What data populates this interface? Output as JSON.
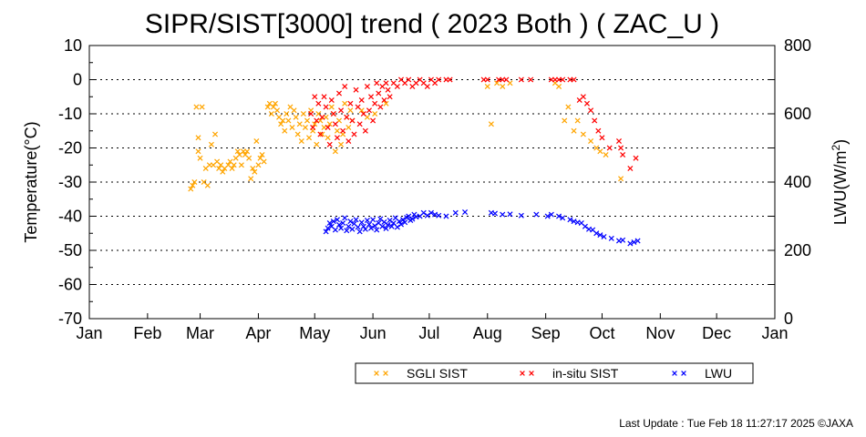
{
  "chart_data": {
    "type": "scatter",
    "title": "SIPR/SIST[3000] trend ( 2023 Both ) ( ZAC_U )",
    "ylabel": "Temperature(°C)",
    "y2label_main": "LWU(W/m",
    "y2label_sup": "2",
    "y2label_end": ")",
    "ylim": [
      -70,
      10
    ],
    "y2lim": [
      0,
      800
    ],
    "xlim": [
      0,
      365
    ],
    "y_ticks": [
      "10",
      "0",
      "-10",
      "-20",
      "-30",
      "-40",
      "-50",
      "-60",
      "-70"
    ],
    "y2_ticks": [
      "800",
      "600",
      "400",
      "200",
      "0"
    ],
    "month_labels": [
      "Jan",
      "Feb",
      "Mar",
      "Apr",
      "May",
      "Jun",
      "Jul",
      "Aug",
      "Sep",
      "Oct",
      "Nov",
      "Dec",
      "Jan"
    ],
    "grid": "horizontal dotted",
    "legend_position": "bottom-right",
    "series": [
      {
        "name": "SGLI SIST",
        "axis": "left",
        "color": "#ffa500",
        "points": [
          [
            54,
            -32
          ],
          [
            55,
            -31
          ],
          [
            56,
            -30
          ],
          [
            57,
            -8
          ],
          [
            58,
            -21
          ],
          [
            58,
            -17
          ],
          [
            59,
            -23
          ],
          [
            60,
            -8
          ],
          [
            61,
            -30
          ],
          [
            62,
            -26
          ],
          [
            63,
            -31
          ],
          [
            64,
            -25
          ],
          [
            65,
            -19
          ],
          [
            66,
            -25
          ],
          [
            67,
            -16
          ],
          [
            68,
            -24
          ],
          [
            69,
            -26
          ],
          [
            70,
            -25
          ],
          [
            71,
            -27
          ],
          [
            72,
            -26
          ],
          [
            74,
            -25
          ],
          [
            75,
            -24
          ],
          [
            76,
            -26
          ],
          [
            77,
            -25
          ],
          [
            78,
            -23
          ],
          [
            79,
            -21
          ],
          [
            80,
            -22
          ],
          [
            81,
            -25
          ],
          [
            82,
            -21
          ],
          [
            83,
            -22
          ],
          [
            84,
            -21
          ],
          [
            85,
            -23
          ],
          [
            86,
            -29
          ],
          [
            87,
            -26
          ],
          [
            88,
            -27
          ],
          [
            89,
            -18
          ],
          [
            90,
            -25
          ],
          [
            91,
            -23
          ],
          [
            92,
            -22
          ],
          [
            93,
            -24
          ],
          [
            95,
            -8
          ],
          [
            96,
            -7
          ],
          [
            97,
            -10
          ],
          [
            98,
            -8
          ],
          [
            99,
            -7
          ],
          [
            100,
            -9
          ],
          [
            101,
            -11
          ],
          [
            102,
            -13
          ],
          [
            103,
            -12
          ],
          [
            104,
            -15
          ],
          [
            105,
            -10
          ],
          [
            106,
            -12
          ],
          [
            107,
            -8
          ],
          [
            108,
            -14
          ],
          [
            109,
            -9
          ],
          [
            110,
            -11
          ],
          [
            111,
            -16
          ],
          [
            112,
            -13
          ],
          [
            113,
            -18
          ],
          [
            114,
            -10
          ],
          [
            115,
            -14
          ],
          [
            116,
            -12
          ],
          [
            117,
            -17
          ],
          [
            118,
            -9
          ],
          [
            119,
            -15
          ],
          [
            120,
            -13
          ],
          [
            121,
            -19
          ],
          [
            122,
            -10
          ],
          [
            123,
            -12
          ],
          [
            124,
            -16
          ],
          [
            125,
            -14
          ],
          [
            126,
            -11
          ],
          [
            127,
            -17
          ],
          [
            128,
            -13
          ],
          [
            129,
            -8
          ],
          [
            130,
            -10
          ],
          [
            131,
            -21
          ],
          [
            132,
            -15
          ],
          [
            133,
            -12
          ],
          [
            134,
            -19
          ],
          [
            135,
            -16
          ],
          [
            136,
            -7
          ],
          [
            137,
            -11
          ],
          [
            138,
            -14
          ],
          [
            139,
            -9
          ],
          [
            140,
            -12
          ],
          [
            145,
            -9
          ],
          [
            148,
            -11
          ],
          [
            152,
            -10
          ],
          [
            158,
            -7
          ],
          [
            212,
            -2
          ],
          [
            214,
            -13
          ],
          [
            217,
            -1
          ],
          [
            220,
            -2
          ],
          [
            224,
            -1
          ],
          [
            248,
            -1
          ],
          [
            250,
            -2
          ],
          [
            253,
            -12
          ],
          [
            255,
            -8
          ],
          [
            258,
            -15
          ],
          [
            260,
            -12
          ],
          [
            263,
            -16
          ],
          [
            267,
            -18
          ],
          [
            270,
            -20
          ],
          [
            272,
            -21
          ],
          [
            275,
            -22
          ],
          [
            283,
            -29
          ]
        ]
      },
      {
        "name": "in-situ SIST",
        "axis": "left",
        "color": "#ff0000",
        "points": [
          [
            118,
            -10
          ],
          [
            119,
            -14
          ],
          [
            120,
            -5
          ],
          [
            121,
            -12
          ],
          [
            122,
            -7
          ],
          [
            123,
            -16
          ],
          [
            124,
            -11
          ],
          [
            125,
            -5
          ],
          [
            126,
            -8
          ],
          [
            127,
            -14
          ],
          [
            128,
            -19
          ],
          [
            129,
            -6
          ],
          [
            130,
            -10
          ],
          [
            131,
            -13
          ],
          [
            132,
            -17
          ],
          [
            133,
            -4
          ],
          [
            134,
            -9
          ],
          [
            135,
            -15
          ],
          [
            136,
            -2
          ],
          [
            137,
            -11
          ],
          [
            138,
            -18
          ],
          [
            139,
            -7
          ],
          [
            140,
            -12
          ],
          [
            141,
            -16
          ],
          [
            142,
            -3
          ],
          [
            143,
            -8
          ],
          [
            144,
            -13
          ],
          [
            145,
            -6
          ],
          [
            146,
            -10
          ],
          [
            147,
            -15
          ],
          [
            148,
            -2
          ],
          [
            149,
            -9
          ],
          [
            150,
            -5
          ],
          [
            151,
            -12
          ],
          [
            152,
            -7
          ],
          [
            153,
            -1
          ],
          [
            154,
            -4
          ],
          [
            155,
            -8
          ],
          [
            156,
            -2
          ],
          [
            157,
            -6
          ],
          [
            158,
            -1
          ],
          [
            159,
            -3
          ],
          [
            160,
            -5
          ],
          [
            162,
            -1
          ],
          [
            164,
            -2
          ],
          [
            166,
            0
          ],
          [
            168,
            -1
          ],
          [
            170,
            0
          ],
          [
            172,
            -2
          ],
          [
            174,
            -1
          ],
          [
            176,
            0
          ],
          [
            178,
            -1
          ],
          [
            180,
            -2
          ],
          [
            182,
            0
          ],
          [
            184,
            -1
          ],
          [
            186,
            0
          ],
          [
            190,
            0
          ],
          [
            192,
            0
          ],
          [
            210,
            0
          ],
          [
            212,
            0
          ],
          [
            218,
            0
          ],
          [
            220,
            0
          ],
          [
            222,
            0
          ],
          [
            230,
            0
          ],
          [
            235,
            0
          ],
          [
            246,
            0
          ],
          [
            248,
            0
          ],
          [
            250,
            0
          ],
          [
            252,
            0
          ],
          [
            256,
            0
          ],
          [
            258,
            0
          ],
          [
            261,
            -6
          ],
          [
            263,
            -5
          ],
          [
            265,
            -7
          ],
          [
            267,
            -9
          ],
          [
            269,
            -12
          ],
          [
            271,
            -15
          ],
          [
            273,
            -17
          ],
          [
            277,
            -20
          ],
          [
            282,
            -18
          ],
          [
            283,
            -20
          ],
          [
            284,
            -22
          ],
          [
            288,
            -26
          ],
          [
            291,
            -23
          ]
        ]
      },
      {
        "name": "LWU",
        "axis": "right",
        "color": "#0000ff",
        "points": [
          [
            126,
            255
          ],
          [
            127,
            265
          ],
          [
            128,
            280
          ],
          [
            129,
            270
          ],
          [
            130,
            285
          ],
          [
            131,
            260
          ],
          [
            132,
            290
          ],
          [
            133,
            275
          ],
          [
            134,
            265
          ],
          [
            135,
            280
          ],
          [
            136,
            295
          ],
          [
            137,
            258
          ],
          [
            138,
            270
          ],
          [
            139,
            285
          ],
          [
            140,
            262
          ],
          [
            141,
            278
          ],
          [
            142,
            290
          ],
          [
            143,
            268
          ],
          [
            144,
            255
          ],
          [
            145,
            282
          ],
          [
            146,
            270
          ],
          [
            147,
            262
          ],
          [
            148,
            288
          ],
          [
            149,
            276
          ],
          [
            150,
            265
          ],
          [
            151,
            290
          ],
          [
            152,
            272
          ],
          [
            153,
            260
          ],
          [
            154,
            280
          ],
          [
            155,
            292
          ],
          [
            156,
            270
          ],
          [
            157,
            283
          ],
          [
            158,
            264
          ],
          [
            159,
            275
          ],
          [
            160,
            288
          ],
          [
            161,
            270
          ],
          [
            162,
            280
          ],
          [
            163,
            295
          ],
          [
            164,
            268
          ],
          [
            165,
            285
          ],
          [
            166,
            276
          ],
          [
            167,
            290
          ],
          [
            168,
            282
          ],
          [
            169,
            296
          ],
          [
            170,
            300
          ],
          [
            171,
            288
          ],
          [
            172,
            292
          ],
          [
            173,
            305
          ],
          [
            174,
            298
          ],
          [
            176,
            300
          ],
          [
            178,
            310
          ],
          [
            180,
            302
          ],
          [
            182,
            310
          ],
          [
            184,
            305
          ],
          [
            186,
            302
          ],
          [
            190,
            300
          ],
          [
            195,
            310
          ],
          [
            200,
            312
          ],
          [
            214,
            310
          ],
          [
            216,
            308
          ],
          [
            220,
            305
          ],
          [
            224,
            306
          ],
          [
            230,
            302
          ],
          [
            238,
            305
          ],
          [
            244,
            300
          ],
          [
            246,
            305
          ],
          [
            250,
            300
          ],
          [
            252,
            295
          ],
          [
            256,
            290
          ],
          [
            258,
            285
          ],
          [
            260,
            282
          ],
          [
            262,
            280
          ],
          [
            264,
            270
          ],
          [
            266,
            262
          ],
          [
            268,
            260
          ],
          [
            270,
            250
          ],
          [
            272,
            245
          ],
          [
            274,
            240
          ],
          [
            278,
            235
          ],
          [
            282,
            228
          ],
          [
            284,
            230
          ],
          [
            288,
            220
          ],
          [
            290,
            224
          ],
          [
            292,
            228
          ]
        ]
      }
    ]
  },
  "footer": "Last Update : Tue Feb 18 11:27:17 2025  ©JAXA"
}
